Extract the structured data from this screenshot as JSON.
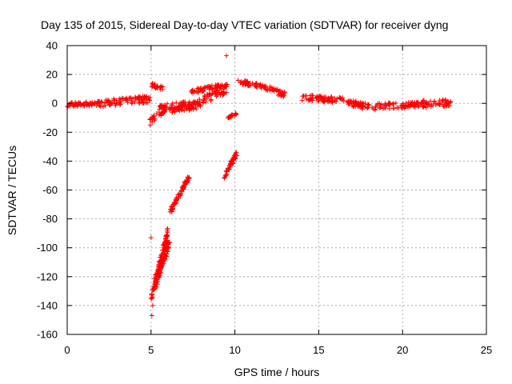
{
  "chart_data": {
    "type": "scatter",
    "title": "Day 135 of 2015, Sidereal Day-to-day VTEC variation (SDTVAR) for receiver dyng",
    "xlabel": "GPS time / hours",
    "ylabel": "SDTVAR / TECUs",
    "xlim": [
      0,
      25
    ],
    "ylim": [
      -160,
      40
    ],
    "xticks": [
      0,
      5,
      10,
      15,
      20,
      25
    ],
    "yticks": [
      40,
      20,
      0,
      -20,
      -40,
      -60,
      -80,
      -100,
      -120,
      -140,
      -160
    ],
    "grid": true,
    "marker": "+",
    "color": "#ff0000",
    "series": [
      {
        "name": "SDTVAR",
        "segments": [
          {
            "from": [
              0.0,
              -1
            ],
            "to": [
              2.0,
              0
            ],
            "spread": 1.5
          },
          {
            "from": [
              2.0,
              0
            ],
            "to": [
              4.9,
              3
            ],
            "spread": 2.5
          },
          {
            "from": [
              4.95,
              -12
            ],
            "to": [
              5.9,
              -4
            ],
            "spread": 2
          },
          {
            "from": [
              5.0,
              -135
            ],
            "to": [
              6.0,
              -90
            ],
            "spread": 4
          },
          {
            "from": [
              5.3,
              -125
            ],
            "to": [
              6.1,
              -95
            ],
            "spread": 3
          },
          {
            "from": [
              5.0,
              13
            ],
            "to": [
              5.7,
              10
            ],
            "spread": 1.5
          },
          {
            "from": [
              5.5,
              -3
            ],
            "to": [
              7.5,
              0
            ],
            "spread": 2
          },
          {
            "from": [
              6.1,
              -76
            ],
            "to": [
              7.3,
              -50
            ],
            "spread": 1.5
          },
          {
            "from": [
              6.2,
              -5
            ],
            "to": [
              7.5,
              -3
            ],
            "spread": 1.5
          },
          {
            "from": [
              7.5,
              -2
            ],
            "to": [
              9.5,
              10
            ],
            "spread": 3
          },
          {
            "from": [
              7.3,
              8
            ],
            "to": [
              9.6,
              13
            ],
            "spread": 1.5
          },
          {
            "from": [
              9.4,
              -50
            ],
            "to": [
              10.1,
              -35
            ],
            "spread": 2
          },
          {
            "from": [
              9.6,
              -10
            ],
            "to": [
              10.1,
              -7
            ],
            "spread": 1
          },
          {
            "from": [
              10.3,
              15
            ],
            "to": [
              11.5,
              12
            ],
            "spread": 1.5
          },
          {
            "from": [
              11.5,
              12
            ],
            "to": [
              13.0,
              6
            ],
            "spread": 2
          },
          {
            "from": [
              14.0,
              4
            ],
            "to": [
              16.5,
              2
            ],
            "spread": 2
          },
          {
            "from": [
              16.5,
              1
            ],
            "to": [
              18.5,
              -3
            ],
            "spread": 2
          },
          {
            "from": [
              18.5,
              -2
            ],
            "to": [
              21.0,
              -1
            ],
            "spread": 2
          },
          {
            "from": [
              21.0,
              0
            ],
            "to": [
              22.9,
              0
            ],
            "spread": 2.5
          }
        ],
        "points": [
          [
            5.0,
            -93
          ],
          [
            9.5,
            33
          ],
          [
            5.05,
            -147
          ],
          [
            5.1,
            -140
          ],
          [
            4.95,
            -15
          ],
          [
            5.6,
            12
          ],
          [
            10.2,
            16
          ],
          [
            5.1,
            14
          ],
          [
            17.6,
            -4
          ],
          [
            21.4,
            -3
          ]
        ]
      }
    ]
  }
}
